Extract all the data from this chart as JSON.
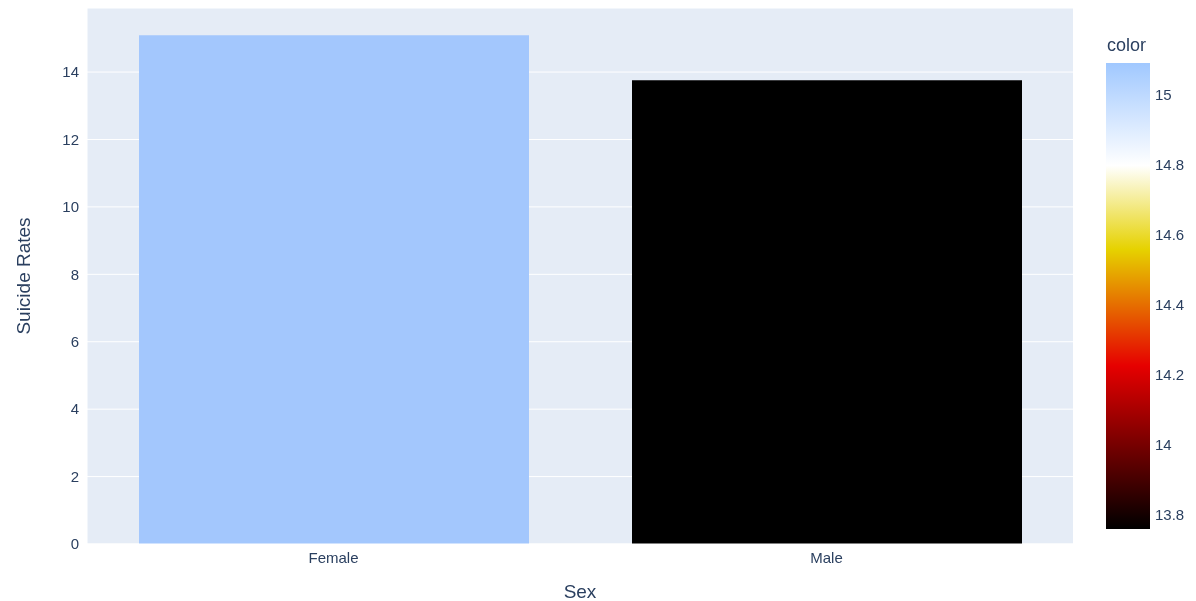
{
  "chart_data": {
    "type": "bar",
    "xlabel": "Sex",
    "ylabel": "Suicide Rates",
    "clabel": "color",
    "categories": [
      "Female",
      "Male"
    ],
    "values": [
      15.09,
      13.76
    ],
    "colors": [
      "#a3c7fd",
      "#000000"
    ],
    "ylim": [
      0,
      15.9
    ],
    "yticks": [
      0,
      2,
      4,
      6,
      8,
      10,
      12,
      14
    ],
    "grid": "y",
    "clim": [
      13.76,
      15.09
    ],
    "cticks": [
      13.8,
      14,
      14.2,
      14.4,
      14.6,
      14.8,
      15
    ]
  }
}
